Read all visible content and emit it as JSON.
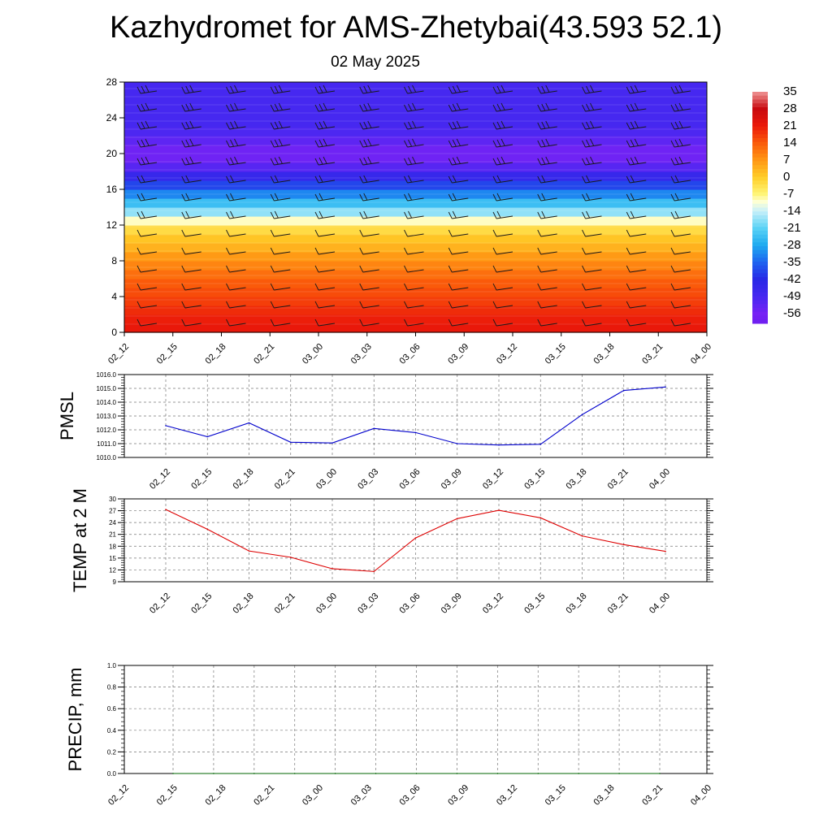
{
  "page": {
    "title": "Kazhydromet for AMS-Zhetybai(43.593 52.1)",
    "subtitle": "02 May 2025"
  },
  "chart_data": [
    {
      "id": "profile",
      "type": "heatmap",
      "title": "",
      "xlabel": "",
      "ylabel": "",
      "x_ticks": [
        "02_12",
        "02_15",
        "02_18",
        "02_21",
        "03_00",
        "03_03",
        "03_06",
        "03_09",
        "03_12",
        "03_15",
        "03_18",
        "03_21",
        "04_00"
      ],
      "y_ticks": [
        0,
        4,
        8,
        12,
        16,
        20,
        24,
        28
      ],
      "ylim": [
        0,
        28
      ],
      "levels": [
        0,
        1,
        2,
        3,
        4,
        5,
        6,
        7,
        8,
        9,
        10,
        11,
        12,
        13,
        14,
        15,
        16,
        17,
        18,
        19,
        20,
        21,
        22,
        23,
        24,
        25,
        26,
        27,
        28
      ],
      "temperature_profile": [
        22,
        21,
        20,
        18,
        16,
        15,
        13,
        10,
        8,
        5,
        2,
        0,
        -5,
        -14,
        -21,
        -28,
        -35,
        -42,
        -49,
        -54,
        -56,
        -54,
        -51,
        -49,
        -49,
        -49,
        -49,
        -49,
        -49
      ],
      "colorbar_labels": [
        "35",
        "28",
        "21",
        "14",
        "7",
        "0",
        "-7",
        "-14",
        "-21",
        "-28",
        "-35",
        "-42",
        "-49",
        "-56"
      ],
      "colorbar_values": [
        35,
        28,
        21,
        14,
        7,
        0,
        -7,
        -14,
        -21,
        -28,
        -35,
        -42,
        -49,
        -56
      ],
      "wind_barbs": true
    },
    {
      "id": "pmsl",
      "type": "line",
      "title": "",
      "xlabel": "",
      "ylabel": "PMSL",
      "ylim": [
        1010,
        1016
      ],
      "y_ticks": [
        "1010.0",
        "1011.0",
        "1012.0",
        "1013.0",
        "1014.0",
        "1015.0",
        "1016.0"
      ],
      "categories": [
        "02_12",
        "02_15",
        "02_18",
        "02_21",
        "03_00",
        "03_03",
        "03_06",
        "03_09",
        "03_12",
        "03_15",
        "03_18",
        "03_21",
        "04_00"
      ],
      "values": [
        1012.3,
        1011.5,
        1012.5,
        1011.1,
        1011.05,
        1012.1,
        1011.8,
        1011.0,
        1010.9,
        1010.95,
        1013.1,
        1014.85,
        1015.1
      ],
      "color": "#0000cc",
      "grid": true
    },
    {
      "id": "temp",
      "type": "line",
      "title": "",
      "xlabel": "",
      "ylabel": "TEMP at 2 M",
      "ylim": [
        9,
        30
      ],
      "y_ticks": [
        "9",
        "12",
        "15",
        "18",
        "21",
        "24",
        "27",
        "30"
      ],
      "categories": [
        "02_12",
        "02_15",
        "02_18",
        "02_21",
        "03_00",
        "03_03",
        "03_06",
        "03_09",
        "03_12",
        "03_15",
        "03_18",
        "03_21",
        "04_00"
      ],
      "values": [
        27.3,
        22.3,
        16.8,
        15.2,
        12.3,
        11.6,
        20.1,
        25.0,
        27.1,
        25.2,
        20.6,
        18.4,
        16.7
      ],
      "color": "#dd0000",
      "grid": true
    },
    {
      "id": "precip",
      "type": "line",
      "title": "",
      "xlabel": "",
      "ylabel": "PRECIP, mm",
      "ylim": [
        0,
        1
      ],
      "y_ticks": [
        "0.0",
        "0.2",
        "0.4",
        "0.6",
        "0.8",
        "1.0"
      ],
      "categories": [
        "02_12",
        "02_15",
        "02_18",
        "02_21",
        "03_00",
        "03_03",
        "03_06",
        "03_09",
        "03_12",
        "03_15",
        "03_18",
        "03_21",
        "04_00"
      ],
      "values": [
        0,
        0,
        0,
        0,
        0,
        0,
        0,
        0,
        0,
        0,
        0,
        0,
        0
      ],
      "color": "#006600",
      "grid": true
    }
  ]
}
